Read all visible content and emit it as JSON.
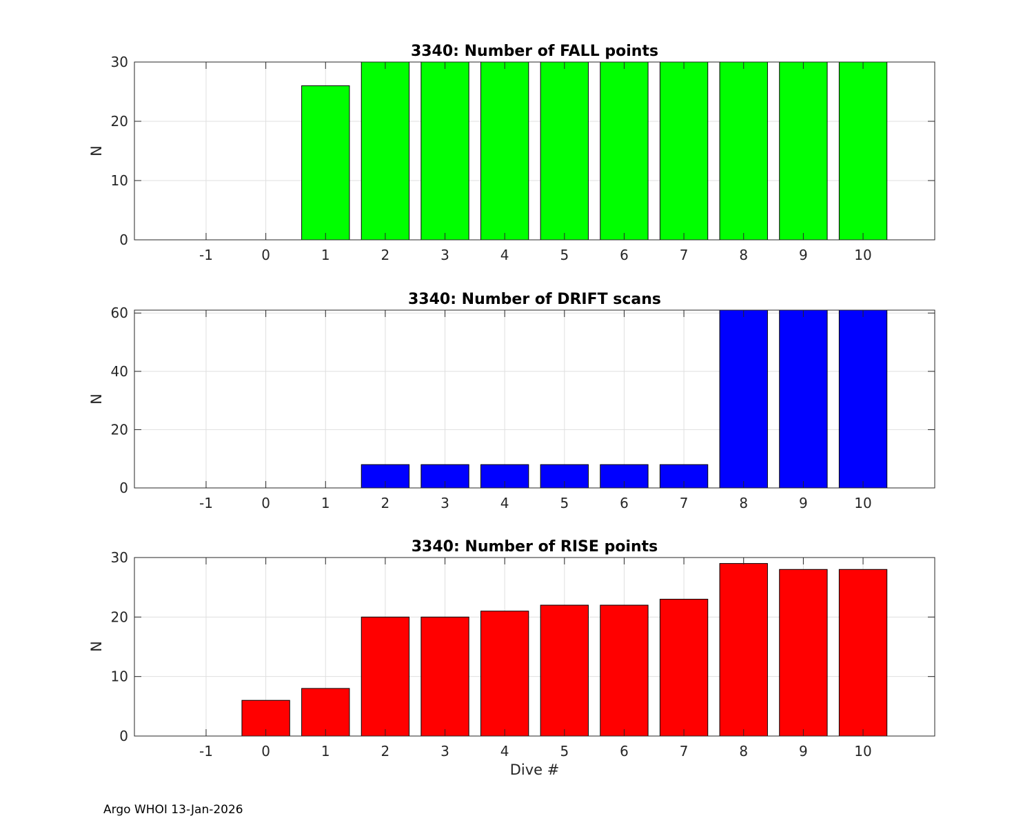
{
  "footer": "Argo WHOI 13-Jan-2026",
  "chart_data": [
    {
      "type": "bar",
      "title": "3340: Number of FALL points",
      "xlabel": "",
      "ylabel": "N",
      "categories": [
        "-1",
        "0",
        "1",
        "2",
        "3",
        "4",
        "5",
        "6",
        "7",
        "8",
        "9",
        "10"
      ],
      "x": [
        -1,
        0,
        1,
        2,
        3,
        4,
        5,
        6,
        7,
        8,
        9,
        10
      ],
      "values": [
        0,
        0,
        26,
        30,
        30,
        30,
        30,
        30,
        30,
        30,
        30,
        30
      ],
      "xlim": [
        -2.2,
        11.2
      ],
      "ylim": [
        0,
        30
      ],
      "yticks": [
        0,
        10,
        20,
        30
      ],
      "color": "#00ff00",
      "grid": true
    },
    {
      "type": "bar",
      "title": "3340: Number of DRIFT scans",
      "xlabel": "",
      "ylabel": "N",
      "categories": [
        "-1",
        "0",
        "1",
        "2",
        "3",
        "4",
        "5",
        "6",
        "7",
        "8",
        "9",
        "10"
      ],
      "x": [
        -1,
        0,
        1,
        2,
        3,
        4,
        5,
        6,
        7,
        8,
        9,
        10
      ],
      "values": [
        0,
        0,
        0,
        8,
        8,
        8,
        8,
        8,
        8,
        61,
        61,
        61
      ],
      "xlim": [
        -2.2,
        11.2
      ],
      "ylim": [
        0,
        61
      ],
      "yticks": [
        0,
        20,
        40,
        60
      ],
      "color": "#0000ff",
      "grid": true
    },
    {
      "type": "bar",
      "title": "3340: Number of RISE points",
      "xlabel": "Dive #",
      "ylabel": "N",
      "categories": [
        "-1",
        "0",
        "1",
        "2",
        "3",
        "4",
        "5",
        "6",
        "7",
        "8",
        "9",
        "10"
      ],
      "x": [
        -1,
        0,
        1,
        2,
        3,
        4,
        5,
        6,
        7,
        8,
        9,
        10
      ],
      "values": [
        0,
        6,
        8,
        20,
        20,
        21,
        22,
        22,
        23,
        29,
        28,
        28
      ],
      "xlim": [
        -2.2,
        11.2
      ],
      "ylim": [
        0,
        30
      ],
      "yticks": [
        0,
        10,
        20,
        30
      ],
      "color": "#ff0000",
      "grid": true
    }
  ]
}
